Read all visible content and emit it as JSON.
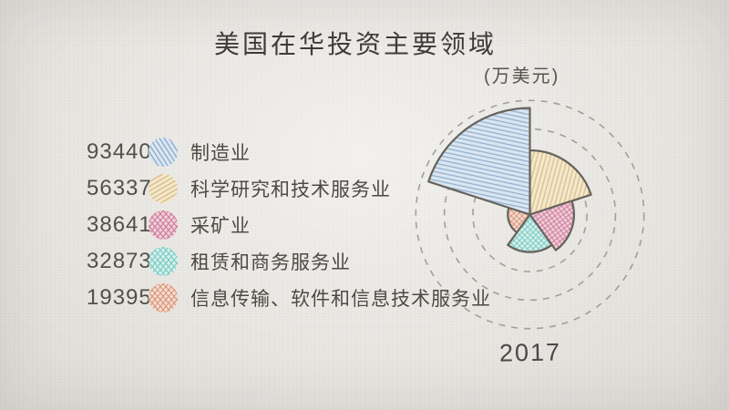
{
  "page": {
    "title": "美国在华投资主要领域",
    "unit_label": "(万美元)",
    "year_label": "2017"
  },
  "colors": {
    "background": "#e9e7e2",
    "wedge_outline": "#66635d",
    "grid_line": "#a29f99",
    "title_text": "#3d3c39",
    "body_text": "#4c4b46"
  },
  "chart_data": {
    "type": "pie",
    "variant": "nightingale-rose",
    "title": "美国在华投资主要领域",
    "unit": "万美元",
    "period": "2017",
    "series": [
      {
        "name": "制造业",
        "value": 93440,
        "fill": "#dbe6f1",
        "hatch": "#8fafd0",
        "hatch_style": "single",
        "hatch_rotation_deg": 12
      },
      {
        "name": "科学研究和技术服务业",
        "value": 56337,
        "fill": "#f4e8cb",
        "hatch": "#d9bd8c",
        "hatch_style": "single",
        "hatch_rotation_deg": -75
      },
      {
        "name": "采矿业",
        "value": 38641,
        "fill": "#eed0da",
        "hatch": "#d27f9d",
        "hatch_style": "cross",
        "hatch_rotation_deg": 8
      },
      {
        "name": "租赁和商务服务业",
        "value": 32873,
        "fill": "#d6f0ec",
        "hatch": "#7fccc4",
        "hatch_style": "cross",
        "hatch_rotation_deg": 0
      },
      {
        "name": "信息传输、软件和信息技术服务业",
        "value": 19395,
        "fill": "#f5dcd1",
        "hatch": "#da9a7e",
        "hatch_style": "cross",
        "hatch_rotation_deg": 0
      }
    ],
    "angular_order": [
      1,
      2,
      3,
      4,
      0
    ],
    "start_angle_deg": 0,
    "direction": "clockwise",
    "equal_angles": true,
    "wedge_angle_deg": 72,
    "radius_scale": "linear",
    "grid_circle_values": [
      50000,
      75000,
      100000
    ],
    "legend_position": "left",
    "grid": "dashed-circles"
  }
}
